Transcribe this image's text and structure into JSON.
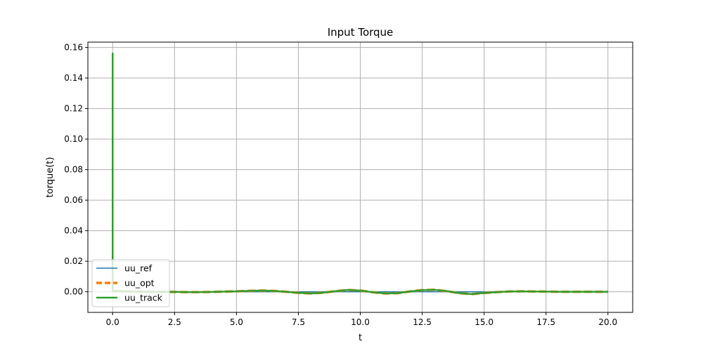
{
  "chart_data": {
    "type": "line",
    "title": "Input Torque",
    "xlabel": "t",
    "ylabel": "torque(t)",
    "xlim": [
      -1.0,
      21.0
    ],
    "ylim": [
      -0.0135,
      0.1635
    ],
    "xticks": [
      0.0,
      2.5,
      5.0,
      7.5,
      10.0,
      12.5,
      15.0,
      17.5,
      20.0
    ],
    "xtick_labels": [
      "0.0",
      "2.5",
      "5.0",
      "7.5",
      "10.0",
      "12.5",
      "15.0",
      "17.5",
      "20.0"
    ],
    "yticks": [
      0.0,
      0.02,
      0.04,
      0.06,
      0.08,
      0.1,
      0.12,
      0.14,
      0.16
    ],
    "ytick_labels": [
      "0.00",
      "0.02",
      "0.04",
      "0.06",
      "0.08",
      "0.10",
      "0.12",
      "0.14",
      "0.16"
    ],
    "grid": true,
    "legend_position": "lower-left",
    "x": [
      0.0,
      0.5,
      1.0,
      1.5,
      2.0,
      2.5,
      3.0,
      3.5,
      4.0,
      4.5,
      5.0,
      5.5,
      6.0,
      6.5,
      7.0,
      7.5,
      8.0,
      8.5,
      9.0,
      9.5,
      10.0,
      10.5,
      11.0,
      11.5,
      12.0,
      12.5,
      13.0,
      13.5,
      14.0,
      14.5,
      15.0,
      15.5,
      16.0,
      16.5,
      17.0,
      17.5,
      18.0,
      18.5,
      19.0,
      19.5,
      20.0
    ],
    "series": [
      {
        "name": "uu_ref",
        "color": "#1f77b4",
        "style": "solid",
        "values": [
          0.0,
          0.0,
          0.0,
          0.0,
          0.0,
          0.0,
          0.0,
          0.0,
          0.0,
          0.0,
          0.0,
          0.0,
          0.0,
          0.0,
          0.0,
          0.0,
          0.0,
          0.0,
          0.0,
          0.0,
          0.0,
          0.0,
          0.0,
          0.0,
          0.0,
          0.0,
          0.0,
          0.0,
          0.0,
          0.0,
          0.0,
          0.0,
          0.0,
          0.0,
          0.0,
          0.0,
          0.0,
          0.0,
          0.0,
          0.0,
          0.0
        ]
      },
      {
        "name": "uu_opt",
        "color": "#ff7f0e",
        "style": "dashed",
        "values": [
          0.0005,
          0.0003,
          0.0001,
          0.0,
          0.0,
          -0.0001,
          -0.0002,
          -0.0002,
          -0.0001,
          0.0001,
          0.0003,
          0.0006,
          0.0008,
          0.0006,
          0.0,
          -0.0007,
          -0.0011,
          -0.0006,
          0.0004,
          0.0012,
          0.0008,
          -0.0003,
          -0.0011,
          -0.0009,
          0.0002,
          0.0011,
          0.0013,
          0.0004,
          -0.0009,
          -0.0015,
          -0.0008,
          -0.0002,
          0.0002,
          0.0003,
          0.0002,
          0.0001,
          0.0,
          0.0,
          0.0,
          0.0,
          0.0
        ]
      },
      {
        "name": "uu_track",
        "color": "#2ca02c",
        "style": "solid",
        "spike": {
          "x": 0.0,
          "y": 0.1565
        },
        "values": [
          0.0005,
          0.0003,
          0.0001,
          0.0,
          0.0,
          -0.0001,
          -0.0002,
          -0.0002,
          -0.0001,
          0.0001,
          0.0003,
          0.0006,
          0.0008,
          0.0006,
          0.0,
          -0.0007,
          -0.0011,
          -0.0006,
          0.0004,
          0.0012,
          0.0008,
          -0.0003,
          -0.0011,
          -0.0009,
          0.0002,
          0.0011,
          0.0013,
          0.0004,
          -0.0009,
          -0.0015,
          -0.0008,
          -0.0002,
          0.0002,
          0.0003,
          0.0002,
          0.0001,
          0.0,
          0.0,
          0.0,
          0.0,
          0.0
        ]
      }
    ]
  }
}
